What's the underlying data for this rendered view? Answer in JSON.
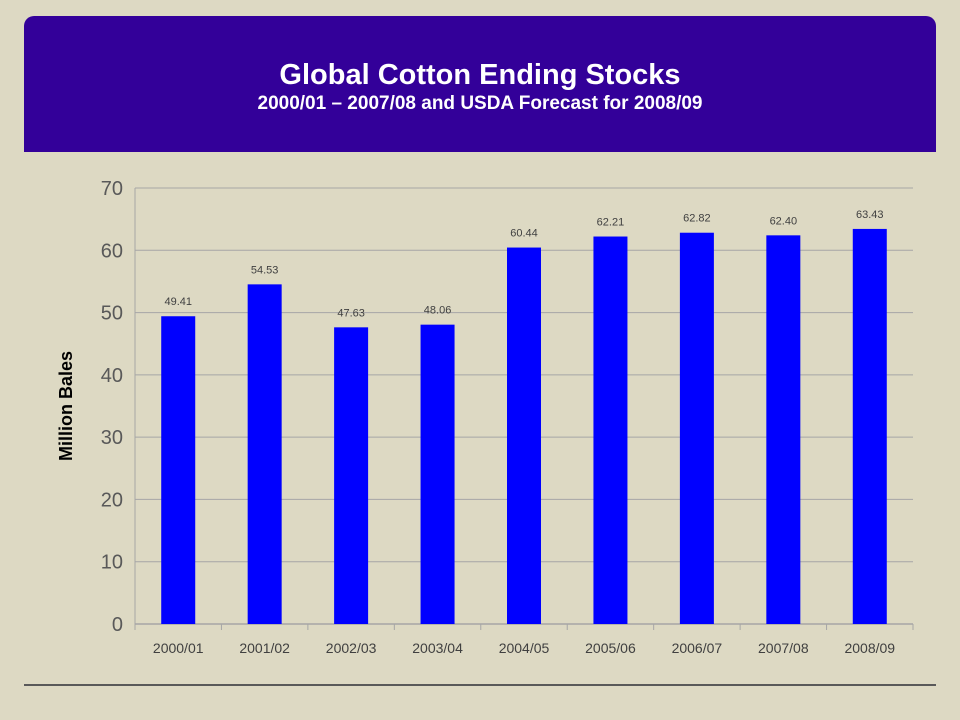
{
  "header": {
    "title": "Global Cotton Ending Stocks",
    "subtitle": "2000/01 – 2007/08 and USDA Forecast for 2008/09"
  },
  "colors": {
    "banner": "#330099",
    "bar": "#0000ff",
    "background": "#ddd9c3",
    "grid": "#a6a6a6"
  },
  "chart_data": {
    "type": "bar",
    "title": "Global Cotton Ending Stocks",
    "subtitle": "2000/01 – 2007/08 and USDA Forecast for 2008/09",
    "xlabel": "",
    "ylabel": "Million Bales",
    "ylim": [
      0,
      70
    ],
    "yticks": [
      0,
      10,
      20,
      30,
      40,
      50,
      60,
      70
    ],
    "grid": true,
    "legend": "none",
    "categories": [
      "2000/01",
      "2001/02",
      "2002/03",
      "2003/04",
      "2004/05",
      "2005/06",
      "2006/07",
      "2007/08",
      "2008/09"
    ],
    "values": [
      49.41,
      54.53,
      47.63,
      48.06,
      60.44,
      62.21,
      62.82,
      62.4,
      63.43
    ],
    "value_labels": [
      "49.41",
      "54.53",
      "47.63",
      "48.06",
      "60.44",
      "62.21",
      "62.82",
      "62.40",
      "63.43"
    ]
  }
}
